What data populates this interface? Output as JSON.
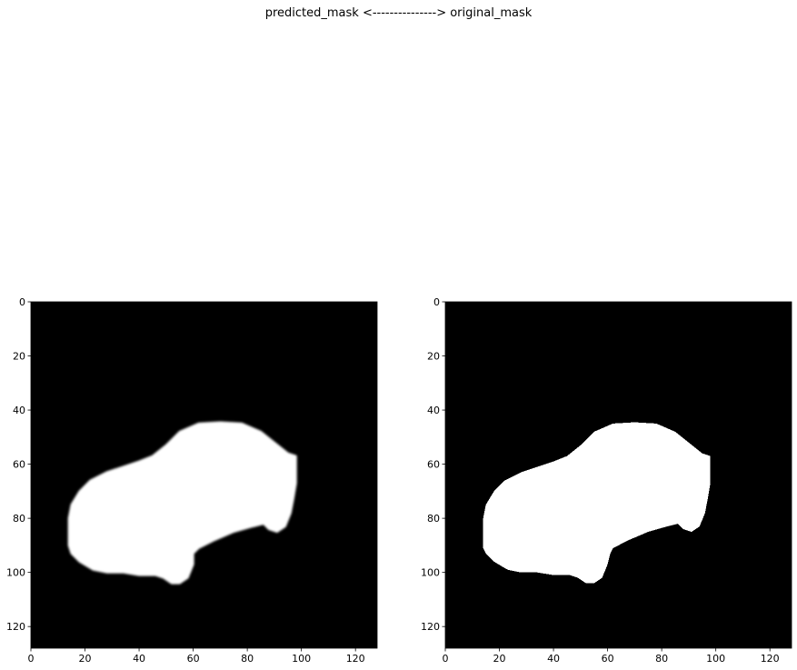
{
  "figure": {
    "suptitle": "predicted_mask  <--------------->  original_mask"
  },
  "chart_data": [
    {
      "type": "heatmap",
      "title": "",
      "xlabel": "",
      "ylabel": "",
      "xlim": [
        0,
        128
      ],
      "ylim": [
        128,
        0
      ],
      "xticks": [
        0,
        20,
        40,
        60,
        80,
        100,
        120
      ],
      "yticks": [
        0,
        20,
        40,
        60,
        80,
        100,
        120
      ],
      "colormap": "gray",
      "background_value": 0,
      "mask_value": 1,
      "edge": "soft",
      "mask_outline": [
        [
          14,
          90
        ],
        [
          14,
          80
        ],
        [
          15,
          75
        ],
        [
          18,
          70
        ],
        [
          22,
          66
        ],
        [
          28,
          63
        ],
        [
          34,
          61
        ],
        [
          40,
          59
        ],
        [
          45,
          57
        ],
        [
          50,
          53
        ],
        [
          55,
          48
        ],
        [
          62,
          45
        ],
        [
          70,
          44.5
        ],
        [
          78,
          45
        ],
        [
          85,
          48
        ],
        [
          90,
          52
        ],
        [
          95,
          56
        ],
        [
          98,
          57
        ],
        [
          98,
          67
        ],
        [
          97,
          73
        ],
        [
          96,
          78
        ],
        [
          94,
          83
        ],
        [
          91,
          85
        ],
        [
          88,
          84
        ],
        [
          86,
          82
        ],
        [
          82,
          83
        ],
        [
          75,
          85
        ],
        [
          68,
          88
        ],
        [
          62,
          91
        ],
        [
          60,
          93
        ],
        [
          60,
          97
        ],
        [
          58,
          102
        ],
        [
          55,
          104
        ],
        [
          52,
          104
        ],
        [
          49,
          102
        ],
        [
          46,
          101
        ],
        [
          40,
          101
        ],
        [
          34,
          100
        ],
        [
          28,
          100
        ],
        [
          23,
          99
        ],
        [
          18,
          96
        ],
        [
          15,
          93
        ]
      ]
    },
    {
      "type": "heatmap",
      "title": "",
      "xlabel": "",
      "ylabel": "",
      "xlim": [
        0,
        128
      ],
      "ylim": [
        128,
        0
      ],
      "xticks": [
        0,
        20,
        40,
        60,
        80,
        100,
        120
      ],
      "yticks": [
        0,
        20,
        40,
        60,
        80,
        100,
        120
      ],
      "colormap": "gray",
      "background_value": 0,
      "mask_value": 1,
      "edge": "hard",
      "mask_outline": [
        [
          14,
          91
        ],
        [
          14,
          80
        ],
        [
          15,
          75
        ],
        [
          18,
          70
        ],
        [
          22,
          66
        ],
        [
          28,
          63
        ],
        [
          34,
          61
        ],
        [
          40,
          59
        ],
        [
          45,
          57
        ],
        [
          50,
          53
        ],
        [
          55,
          48
        ],
        [
          62,
          45
        ],
        [
          70,
          44.5
        ],
        [
          78,
          45
        ],
        [
          85,
          48
        ],
        [
          90,
          52
        ],
        [
          95,
          56
        ],
        [
          98,
          57
        ],
        [
          98,
          67
        ],
        [
          97,
          73
        ],
        [
          96,
          78
        ],
        [
          94,
          83
        ],
        [
          91,
          85
        ],
        [
          88,
          84
        ],
        [
          86,
          82
        ],
        [
          82,
          83
        ],
        [
          75,
          85
        ],
        [
          68,
          88
        ],
        [
          62,
          91
        ],
        [
          61,
          93
        ],
        [
          60,
          97
        ],
        [
          58,
          102
        ],
        [
          55,
          104
        ],
        [
          52,
          104
        ],
        [
          49,
          102
        ],
        [
          46,
          101
        ],
        [
          40,
          101
        ],
        [
          34,
          100
        ],
        [
          28,
          100
        ],
        [
          23,
          99
        ],
        [
          18,
          96
        ],
        [
          15,
          93
        ]
      ]
    }
  ]
}
